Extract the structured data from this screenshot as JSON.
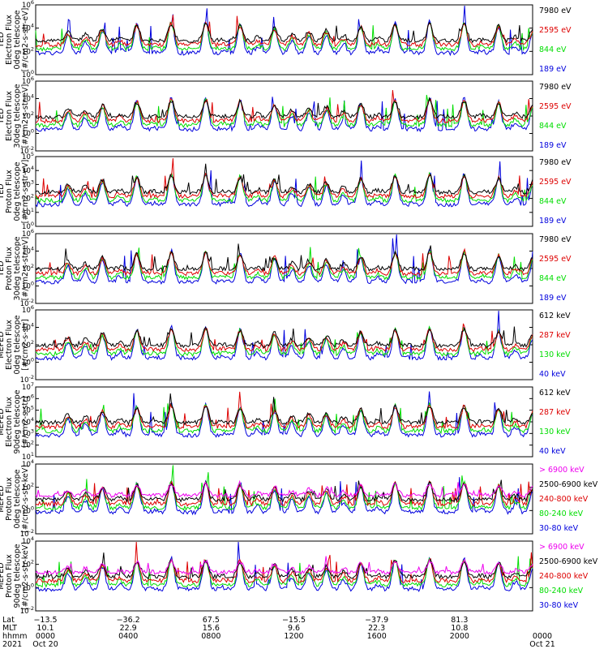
{
  "chart_data": {
    "type": "line",
    "panels": [
      {
        "ylabel": [
          "TED",
          "Electron Flux",
          "0deg telescope",
          "[#/cm2-s-str-eV]"
        ],
        "yticks": [
          "10^6",
          "10^4",
          "10^2",
          "10^0"
        ],
        "series": [
          {
            "name": "7980 eV",
            "color": "#000000"
          },
          {
            "name": "2595 eV",
            "color": "#dd0000"
          },
          {
            "name": "844 eV",
            "color": "#00dd00"
          },
          {
            "name": "189 eV",
            "color": "#0000dd"
          }
        ]
      },
      {
        "ylabel": [
          "TED",
          "Electron Flux",
          "30deg telescope",
          "[#/cm2-s-str-eV]"
        ],
        "yticks": [
          "10^6",
          "10^4",
          "10^2",
          "10^0",
          "10^-2"
        ],
        "series": [
          {
            "name": "7980 eV",
            "color": "#000000"
          },
          {
            "name": "2595 eV",
            "color": "#dd0000"
          },
          {
            "name": "844 eV",
            "color": "#00dd00"
          },
          {
            "name": "189 eV",
            "color": "#0000dd"
          }
        ]
      },
      {
        "ylabel": [
          "TED",
          "Proton Flux",
          "0deg telescope",
          "[#/cm2-s-str-eV]"
        ],
        "yticks": [
          "10^5",
          "10^4",
          "10^3",
          "10^2",
          "10^1",
          "10^0"
        ],
        "series": [
          {
            "name": "7980 eV",
            "color": "#000000"
          },
          {
            "name": "2595 eV",
            "color": "#dd0000"
          },
          {
            "name": "844 eV",
            "color": "#00dd00"
          },
          {
            "name": "189 eV",
            "color": "#0000dd"
          }
        ]
      },
      {
        "ylabel": [
          "TED",
          "Proton Flux",
          "30deg telescope",
          "[#/cm2-s-str-eV]"
        ],
        "yticks": [
          "10^6",
          "10^4",
          "10^2",
          "10^0",
          "10^-2"
        ],
        "series": [
          {
            "name": "7980 eV",
            "color": "#000000"
          },
          {
            "name": "2595 eV",
            "color": "#dd0000"
          },
          {
            "name": "844 eV",
            "color": "#00dd00"
          },
          {
            "name": "189 eV",
            "color": "#0000dd"
          }
        ]
      },
      {
        "ylabel": [
          "MEPED",
          "Electron Flux",
          "0deg telescope",
          "[#/cm2-s-str]"
        ],
        "yticks": [
          "10^6",
          "10^4",
          "10^2",
          "10^0",
          "10^-2"
        ],
        "series": [
          {
            "name": "612 keV",
            "color": "#000000"
          },
          {
            "name": "287 keV",
            "color": "#dd0000"
          },
          {
            "name": "130 keV",
            "color": "#00dd00"
          },
          {
            "name": "40 keV",
            "color": "#0000dd"
          }
        ]
      },
      {
        "ylabel": [
          "MEPED",
          "Electron Flux",
          "90deg telescope",
          "[#/cm2-s-str]"
        ],
        "yticks": [
          "10^7",
          "10^6",
          "10^5",
          "10^4",
          "10^3",
          "10^2",
          "10^1"
        ],
        "series": [
          {
            "name": "612 keV",
            "color": "#000000"
          },
          {
            "name": "287 keV",
            "color": "#dd0000"
          },
          {
            "name": "130 keV",
            "color": "#00dd00"
          },
          {
            "name": "40 keV",
            "color": "#0000dd"
          }
        ]
      },
      {
        "ylabel": [
          "MEPED",
          "Proton Flux",
          "0deg telescope",
          "[#/cm2-s-str-keV]"
        ],
        "yticks": [
          "10^4",
          "10^2",
          "10^0",
          "10^-2"
        ],
        "series": [
          {
            "name": "> 6900 keV",
            "color": "#ee00ee"
          },
          {
            "name": "2500-6900 keV",
            "color": "#000000"
          },
          {
            "name": "240-800 keV",
            "color": "#dd0000"
          },
          {
            "name": "80-240 keV",
            "color": "#00dd00"
          },
          {
            "name": "30-80 keV",
            "color": "#0000dd"
          }
        ]
      },
      {
        "ylabel": [
          "MEPED",
          "Proton Flux",
          "90deg telescope",
          "[#/cm2-s-str-keV]"
        ],
        "yticks": [
          "10^4",
          "10^2",
          "10^0",
          "10^-2"
        ],
        "series": [
          {
            "name": "> 6900 keV",
            "color": "#ee00ee"
          },
          {
            "name": "2500-6900 keV",
            "color": "#000000"
          },
          {
            "name": "240-800 keV",
            "color": "#dd0000"
          },
          {
            "name": "80-240 keV",
            "color": "#00dd00"
          },
          {
            "name": "30-80 keV",
            "color": "#0000dd"
          }
        ]
      }
    ],
    "footer": {
      "row_labels": [
        "Lat",
        "MLT",
        "hhmm",
        "2021"
      ],
      "ticks": [
        {
          "lat": "−13.5",
          "mlt": "10.1",
          "hhmm": "0000",
          "date": "Oct 20"
        },
        {
          "lat": "−36.2",
          "mlt": "22.9",
          "hhmm": "0400",
          "date": ""
        },
        {
          "lat": "67.5",
          "mlt": "15.6",
          "hhmm": "0800",
          "date": ""
        },
        {
          "lat": "−15.5",
          "mlt": "9.6",
          "hhmm": "1200",
          "date": ""
        },
        {
          "lat": "−37.9",
          "mlt": "22.3",
          "hhmm": "1600",
          "date": ""
        },
        {
          "lat": "81.3",
          "mlt": "10.8",
          "hhmm": "2000",
          "date": ""
        },
        {
          "lat": "",
          "mlt": "",
          "hhmm": "0000",
          "date": "Oct 21"
        }
      ]
    }
  }
}
